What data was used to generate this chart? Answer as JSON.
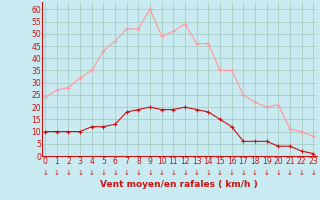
{
  "hours": [
    0,
    1,
    2,
    3,
    4,
    5,
    6,
    7,
    8,
    9,
    10,
    11,
    12,
    13,
    14,
    15,
    16,
    17,
    18,
    19,
    20,
    21,
    22,
    23
  ],
  "vent_moyen": [
    10,
    10,
    10,
    10,
    12,
    12,
    13,
    18,
    19,
    20,
    19,
    19,
    20,
    19,
    18,
    15,
    12,
    6,
    6,
    6,
    4,
    4,
    2,
    1
  ],
  "rafales": [
    24,
    27,
    28,
    32,
    35,
    43,
    47,
    52,
    52,
    60,
    49,
    51,
    54,
    46,
    46,
    35,
    35,
    25,
    22,
    20,
    21,
    11,
    10,
    8
  ],
  "bg_color": "#c8eaf0",
  "grid_color": "#a0c8c0",
  "line_moyen_color": "#cc1111",
  "line_rafales_color": "#ff9999",
  "axis_color": "#cc1111",
  "xlabel": "Vent moyen/en rafales ( km/h )",
  "ylim": [
    0,
    63
  ],
  "yticks": [
    0,
    5,
    10,
    15,
    20,
    25,
    30,
    35,
    40,
    45,
    50,
    55,
    60
  ],
  "tick_fontsize": 5.5,
  "label_fontsize": 6.5
}
